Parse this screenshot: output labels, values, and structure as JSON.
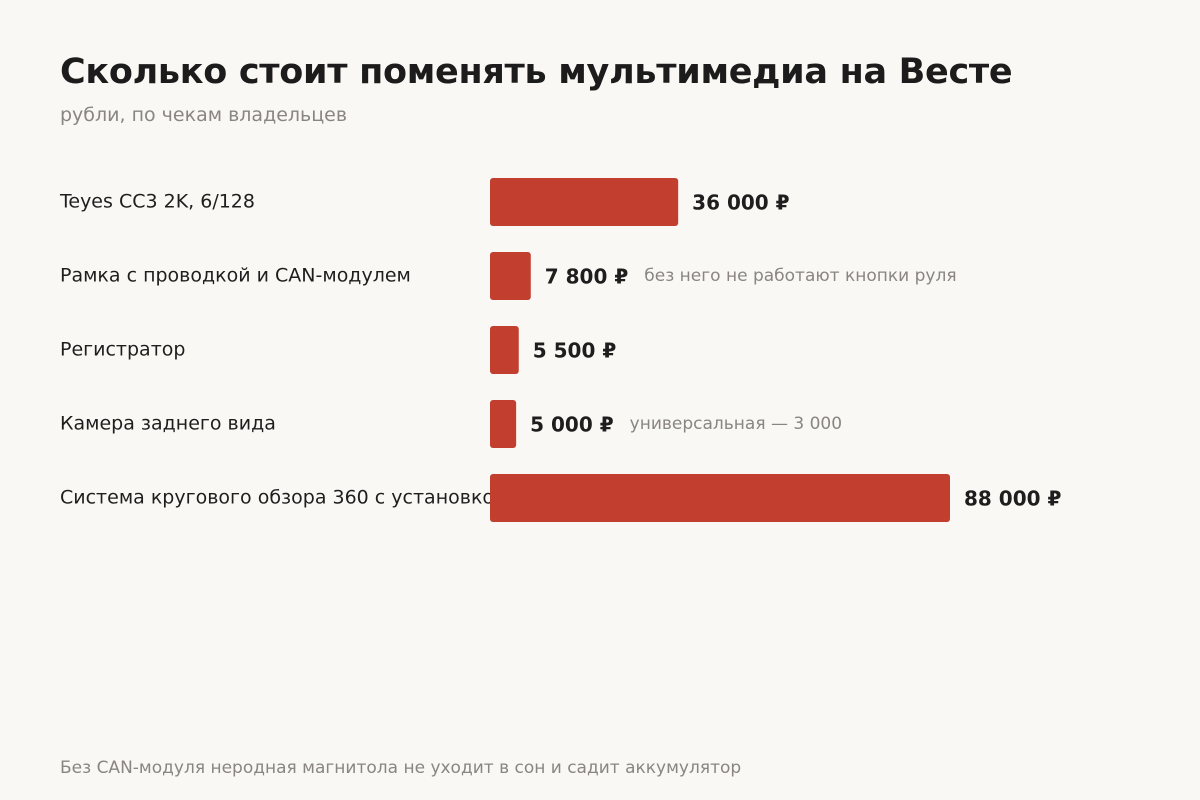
{
  "title": "Сколько стоит поменять мультимедиа на Весте",
  "subtitle": "рубли, по чекам владельцев",
  "footnote": "Без CAN-модуля неродная магнитола не уходит в сон и садит аккумулятор",
  "colors": {
    "bar": "#c23e2e",
    "background": "#faf8f4",
    "muted_text": "#8a8580"
  },
  "chart_data": {
    "type": "bar",
    "orientation": "horizontal",
    "categories": [
      "Teyes CC3 2K, 6/128",
      "Рамка с проводкой и CAN-модулем",
      "Регистратор",
      "Камера заднего вида",
      "Система кругового обзора 360 с установкой"
    ],
    "values": [
      36000,
      7800,
      5500,
      5000,
      88000
    ],
    "value_labels": [
      "36 000 ₽",
      "7 800 ₽",
      "5 500 ₽",
      "5 000 ₽",
      "88 000 ₽"
    ],
    "annotations": [
      "",
      "без него не работают кнопки руля",
      "",
      "универсальная — 3 000",
      ""
    ],
    "xlim": [
      0,
      88000
    ],
    "grid": false,
    "legend": "none"
  }
}
